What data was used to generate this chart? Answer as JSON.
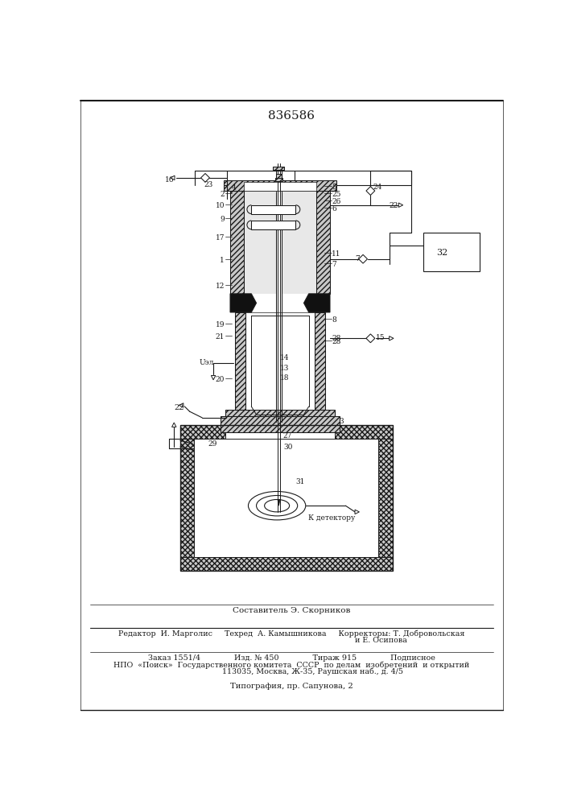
{
  "title": "836586",
  "bg_color": "#ffffff",
  "footer_lines": [
    "Составитель Э. Скорников",
    "Редактор  И. Марголис     Техред  А. Камышникова     Корректоры: Т. Добровольская",
    "                                                                          и Е. Осипова",
    "Заказ 1551/4              Изд. № 450              Тираж 915              Подписное",
    "НПО  «Поиск»  Государственного комитета  СССР  по делам  изобретений  и открытий",
    "                  113035, Москва, Ж-35, Раушская наб., д. 4/5",
    "Типография, пр. Сапунова, 2"
  ],
  "gray": "#b0b0b0",
  "dark": "#1a1a1a",
  "hatch_gray": "#d0d0d0"
}
